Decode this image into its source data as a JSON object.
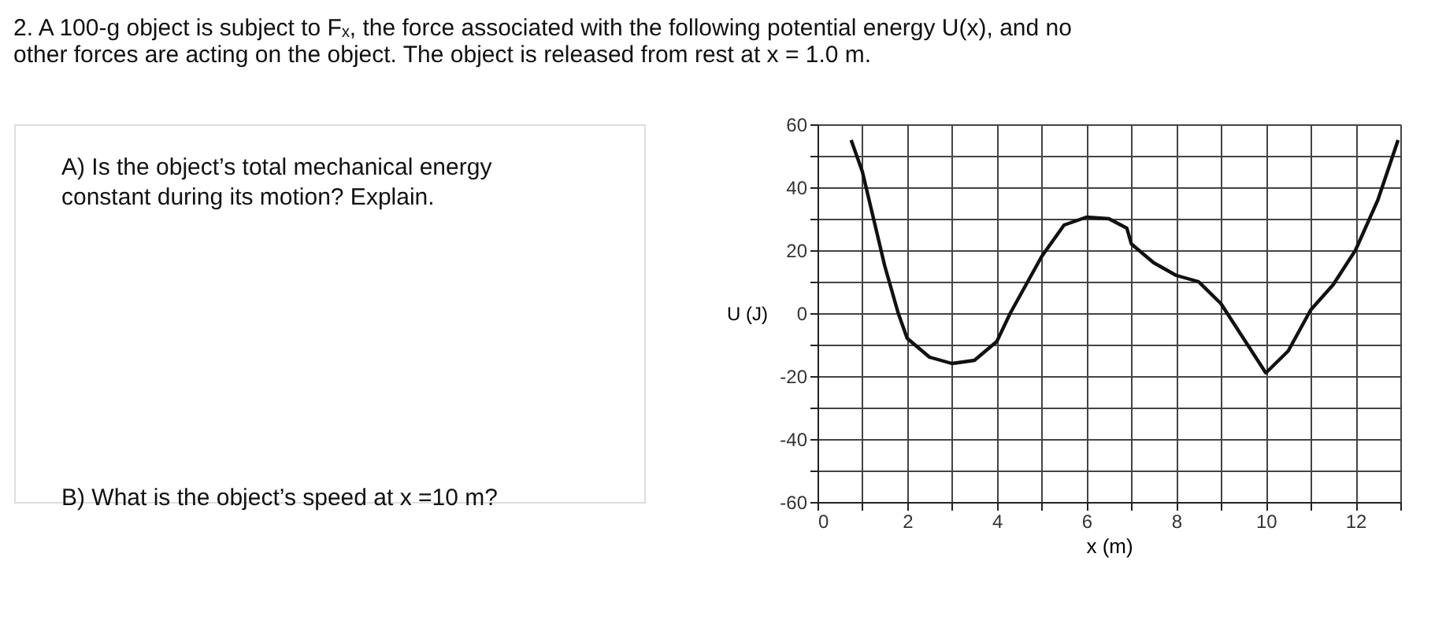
{
  "chart_data": {
    "type": "line",
    "title": "2. A 100-g object is subject to Fₓ, the force associated with the following potential energy U(x), and no other forces are acting on the object. The object is released from rest at x = 1.0 m.",
    "annotations": [
      "A) Is the object’s total mechanical energy constant during its motion? Explain.",
      "B) What is the object’s speed at x =10 m?"
    ],
    "xlabel": "x (m)",
    "ylabel": "U (J)",
    "x": [
      0.75,
      1,
      1.5,
      1.8,
      2,
      2.5,
      3,
      3.5,
      4,
      4.3,
      5,
      5.5,
      6,
      6.5,
      6.9,
      7,
      7.5,
      8,
      8.5,
      9,
      9.5,
      10,
      10.5,
      11,
      11.5,
      12,
      12.5,
      12.95
    ],
    "series": [
      {
        "color": "#111111",
        "values": [
          55,
          45,
          15,
          0,
          -8,
          -14,
          -16,
          -15,
          -9,
          0,
          18,
          28,
          30.5,
          30,
          27,
          22,
          16,
          12,
          10,
          3,
          -8,
          -19,
          -12,
          1,
          9,
          20,
          36,
          55
        ]
      }
    ],
    "xlim": [
      0,
      13
    ],
    "ylim": [
      -60,
      60
    ],
    "xticks": [
      0,
      {
        "value": 1,
        "label": null
      },
      2,
      {
        "value": 3,
        "label": null
      },
      4,
      {
        "value": 5,
        "label": null
      },
      6,
      {
        "value": 7,
        "label": null
      },
      8,
      {
        "value": 9,
        "label": null
      },
      10,
      {
        "value": 11,
        "label": null
      },
      12,
      {
        "value": 13,
        "label": null
      }
    ],
    "yticks": [
      -60,
      {
        "value": -50,
        "label": null
      },
      -40,
      {
        "value": -30,
        "label": null
      },
      -20,
      {
        "value": -10,
        "label": null
      },
      0,
      {
        "value": 10,
        "label": null
      },
      20,
      {
        "value": 30,
        "label": null
      },
      40,
      {
        "value": 50,
        "label": null
      },
      60
    ],
    "grid": true
  }
}
